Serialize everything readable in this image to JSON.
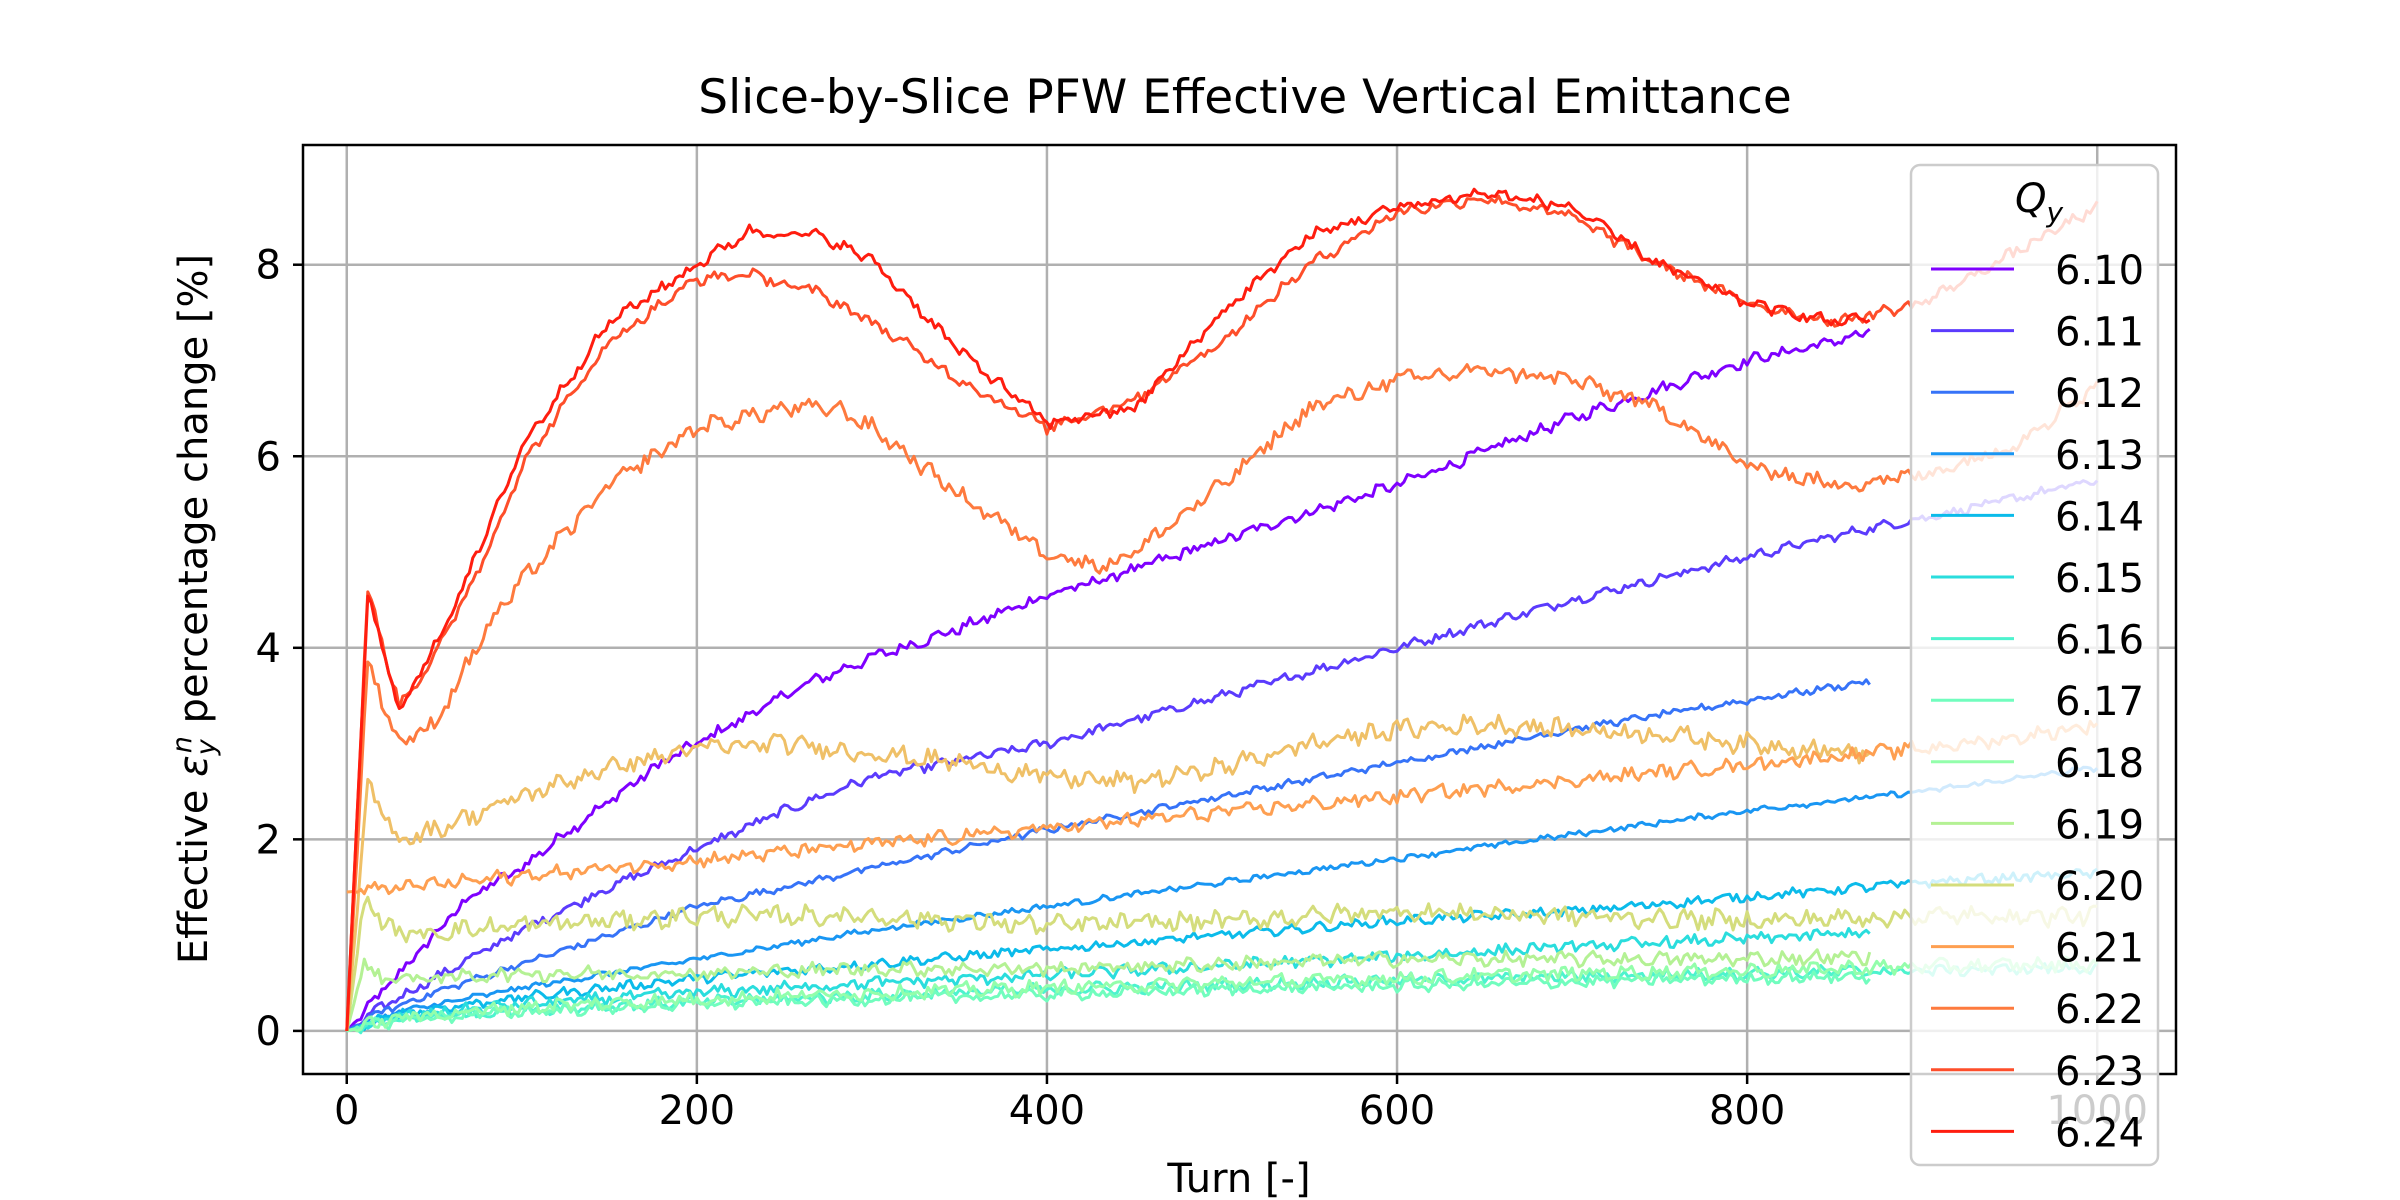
{
  "chart_data": {
    "type": "line",
    "title": "Slice-by-Slice PFW Effective Vertical Emittance",
    "xlabel": "Turn [-]",
    "ylabel_pre": "Effective ",
    "ylabel_sym": "ε",
    "ylabel_sub": "y",
    "ylabel_sup": "n",
    "ylabel_post": " percentage change [%]",
    "xlim": [
      -25,
      1045
    ],
    "ylim": [
      -0.45,
      9.25
    ],
    "xticks": [
      0,
      200,
      400,
      600,
      800,
      1000
    ],
    "xtick_labels": [
      "0",
      "200",
      "400",
      "600",
      "800",
      "1000"
    ],
    "yticks": [
      0,
      2,
      4,
      6,
      8
    ],
    "ytick_labels": [
      "0",
      "2",
      "4",
      "6",
      "8"
    ],
    "grid": true,
    "legend": {
      "title": "Q",
      "title_sub": "y",
      "placement": "upper-right"
    },
    "series": [
      {
        "name": "6.10",
        "color": "#7f00ff",
        "noise": 0.05,
        "x": [
          0,
          15,
          30,
          50,
          70,
          90,
          100,
          120,
          150,
          180,
          200,
          230,
          260,
          300,
          350,
          400,
          430,
          480,
          530,
          600,
          650,
          700,
          750,
          800,
          850,
          870
        ],
        "y": [
          0,
          0.3,
          0.6,
          1.0,
          1.4,
          1.6,
          1.7,
          2.0,
          2.4,
          2.8,
          3.0,
          3.3,
          3.6,
          3.9,
          4.2,
          4.55,
          4.7,
          5.0,
          5.3,
          5.7,
          6.05,
          6.4,
          6.7,
          7.0,
          7.2,
          7.3
        ]
      },
      {
        "name": "6.11",
        "color": "#5b3bfd",
        "noise": 0.04,
        "x": [
          0,
          20,
          50,
          80,
          100,
          150,
          200,
          250,
          300,
          400,
          500,
          600,
          700,
          800,
          870,
          900,
          1000
        ],
        "y": [
          0,
          0.25,
          0.55,
          0.85,
          1.05,
          1.5,
          1.9,
          2.3,
          2.65,
          3.0,
          3.5,
          4.0,
          4.5,
          4.95,
          5.25,
          5.35,
          5.75
        ]
      },
      {
        "name": "6.12",
        "color": "#3673f8",
        "noise": 0.03,
        "x": [
          0,
          20,
          50,
          100,
          150,
          200,
          300,
          400,
          500,
          600,
          700,
          800,
          870
        ],
        "y": [
          0,
          0.2,
          0.4,
          0.7,
          1.0,
          1.3,
          1.7,
          2.1,
          2.45,
          2.8,
          3.15,
          3.45,
          3.65
        ]
      },
      {
        "name": "6.13",
        "color": "#1996f3",
        "noise": 0.025,
        "x": [
          0,
          30,
          100,
          200,
          300,
          400,
          500,
          600,
          700,
          800,
          900,
          1000
        ],
        "y": [
          0,
          0.2,
          0.45,
          0.75,
          1.05,
          1.3,
          1.55,
          1.8,
          2.05,
          2.3,
          2.5,
          2.75
        ]
      },
      {
        "name": "6.14",
        "color": "#0bbbea",
        "noise": 0.04,
        "x": [
          0,
          30,
          100,
          200,
          300,
          400,
          500,
          600,
          700,
          800,
          900,
          1000
        ],
        "y": [
          0,
          0.18,
          0.35,
          0.55,
          0.7,
          0.85,
          1.0,
          1.15,
          1.25,
          1.4,
          1.55,
          1.65
        ]
      },
      {
        "name": "6.15",
        "color": "#2adddd",
        "noise": 0.05,
        "x": [
          0,
          30,
          100,
          200,
          300,
          400,
          500,
          600,
          700,
          800,
          870
        ],
        "y": [
          0,
          0.15,
          0.28,
          0.4,
          0.5,
          0.58,
          0.68,
          0.78,
          0.88,
          0.96,
          1.03
        ]
      },
      {
        "name": "6.16",
        "color": "#4df3ce",
        "noise": 0.05,
        "x": [
          0,
          30,
          100,
          200,
          300,
          400,
          500,
          600,
          700,
          800,
          900,
          1000
        ],
        "y": [
          0,
          0.12,
          0.22,
          0.3,
          0.37,
          0.43,
          0.48,
          0.53,
          0.57,
          0.6,
          0.63,
          0.66
        ]
      },
      {
        "name": "6.17",
        "color": "#71fdbe",
        "noise": 0.05,
        "x": [
          0,
          30,
          100,
          200,
          300,
          400,
          500,
          600,
          700,
          800,
          870
        ],
        "y": [
          0,
          0.12,
          0.2,
          0.28,
          0.33,
          0.38,
          0.43,
          0.47,
          0.51,
          0.55,
          0.57
        ]
      },
      {
        "name": "6.18",
        "color": "#93feab",
        "noise": 0.06,
        "x": [
          0,
          30,
          100,
          200,
          300,
          400,
          500,
          600,
          700,
          800,
          900,
          1000
        ],
        "y": [
          0,
          0.14,
          0.25,
          0.33,
          0.4,
          0.45,
          0.5,
          0.55,
          0.6,
          0.63,
          0.67,
          0.7
        ]
      },
      {
        "name": "6.19",
        "color": "#b4f194",
        "noise": 0.06,
        "x": [
          0,
          10,
          20,
          50,
          100,
          200,
          300,
          400,
          500,
          600,
          700,
          800,
          870
        ],
        "y": [
          0,
          0.7,
          0.55,
          0.55,
          0.6,
          0.6,
          0.65,
          0.65,
          0.7,
          0.75,
          0.75,
          0.75,
          0.78
        ]
      },
      {
        "name": "6.20",
        "color": "#d4dd7c",
        "noise": 0.08,
        "x": [
          0,
          10,
          30,
          60,
          100,
          200,
          300,
          400,
          500,
          600,
          700,
          800,
          900,
          1000
        ],
        "y": [
          0,
          1.35,
          1.0,
          1.05,
          1.1,
          1.2,
          1.2,
          1.1,
          1.15,
          1.25,
          1.2,
          1.15,
          1.2,
          1.2
        ]
      },
      {
        "name": "6.21",
        "color": "#efc067",
        "noise": 0.08,
        "x": [
          0,
          12,
          30,
          50,
          100,
          150,
          200,
          250,
          300,
          350,
          400,
          450,
          500,
          550,
          600,
          650,
          700,
          750,
          800,
          870
        ],
        "y": [
          0,
          2.55,
          2.0,
          2.1,
          2.45,
          2.75,
          2.95,
          3.0,
          2.9,
          2.8,
          2.65,
          2.6,
          2.75,
          3.0,
          3.15,
          3.2,
          3.15,
          3.1,
          3.0,
          2.9
        ]
      },
      {
        "name": "6.21",
        "color": "#fe9f51",
        "noise": 0.06,
        "x": [
          870,
          900,
          950,
          1000
        ],
        "y": [
          2.9,
          2.95,
          3.05,
          3.2
        ]
      },
      {
        "name": "6.22",
        "color": "#fe7a3e",
        "noise": 0.07,
        "x": [
          0,
          12,
          30,
          50,
          80,
          100,
          150,
          200,
          250,
          280,
          300,
          350,
          400,
          430,
          450,
          500,
          550,
          600,
          650,
          700,
          750,
          800,
          850,
          900,
          950,
          1000
        ],
        "y": [
          0,
          3.85,
          3.0,
          3.2,
          4.2,
          4.7,
          5.7,
          6.3,
          6.5,
          6.5,
          6.3,
          5.6,
          5.0,
          4.85,
          5.0,
          5.7,
          6.5,
          6.8,
          6.9,
          6.8,
          6.5,
          5.9,
          5.7,
          5.8,
          6.1,
          6.75
        ]
      },
      {
        "name": "6.23",
        "color": "#fe4e2a",
        "noise": 0.05,
        "x": [
          0,
          12,
          30,
          50,
          80,
          100,
          150,
          200,
          230,
          270,
          300,
          350,
          400,
          450,
          500,
          550,
          600,
          650,
          700,
          750,
          800,
          850,
          900,
          950,
          1000
        ],
        "y": [
          0,
          4.6,
          3.4,
          3.9,
          5.0,
          5.9,
          7.2,
          7.85,
          7.9,
          7.7,
          7.4,
          6.8,
          6.3,
          6.6,
          7.2,
          8.0,
          8.55,
          8.7,
          8.5,
          8.0,
          7.6,
          7.4,
          7.6,
          8.1,
          8.6
        ]
      },
      {
        "name": "6.24",
        "color": "#ff1d0f",
        "noise": 0.05,
        "x": [
          0,
          12,
          30,
          50,
          80,
          100,
          150,
          200,
          230,
          270,
          300,
          350,
          400,
          450,
          500,
          550,
          600,
          650,
          700,
          750,
          800,
          850,
          870
        ],
        "y": [
          0,
          4.55,
          3.35,
          4.0,
          5.2,
          6.1,
          7.4,
          8.0,
          8.35,
          8.3,
          8.05,
          7.1,
          6.35,
          6.5,
          7.5,
          8.3,
          8.6,
          8.75,
          8.6,
          8.0,
          7.6,
          7.4,
          7.45
        ]
      }
    ],
    "legend_entries": [
      {
        "label": "6.10",
        "color": "#7f00ff"
      },
      {
        "label": "6.11",
        "color": "#5b3bfd"
      },
      {
        "label": "6.12",
        "color": "#3673f8"
      },
      {
        "label": "6.13",
        "color": "#1996f3"
      },
      {
        "label": "6.14",
        "color": "#0bbbea"
      },
      {
        "label": "6.15",
        "color": "#2adddd"
      },
      {
        "label": "6.16",
        "color": "#4df3ce"
      },
      {
        "label": "6.17",
        "color": "#71fdbe"
      },
      {
        "label": "6.18",
        "color": "#93feab"
      },
      {
        "label": "6.19",
        "color": "#b4f194"
      },
      {
        "label": "6.20",
        "color": "#d4dd7c"
      },
      {
        "label": "6.21",
        "color": "#fe9f51"
      },
      {
        "label": "6.22",
        "color": "#fe7a3e"
      },
      {
        "label": "6.23",
        "color": "#fe4e2a"
      },
      {
        "label": "6.24",
        "color": "#ff1d0f"
      }
    ]
  }
}
